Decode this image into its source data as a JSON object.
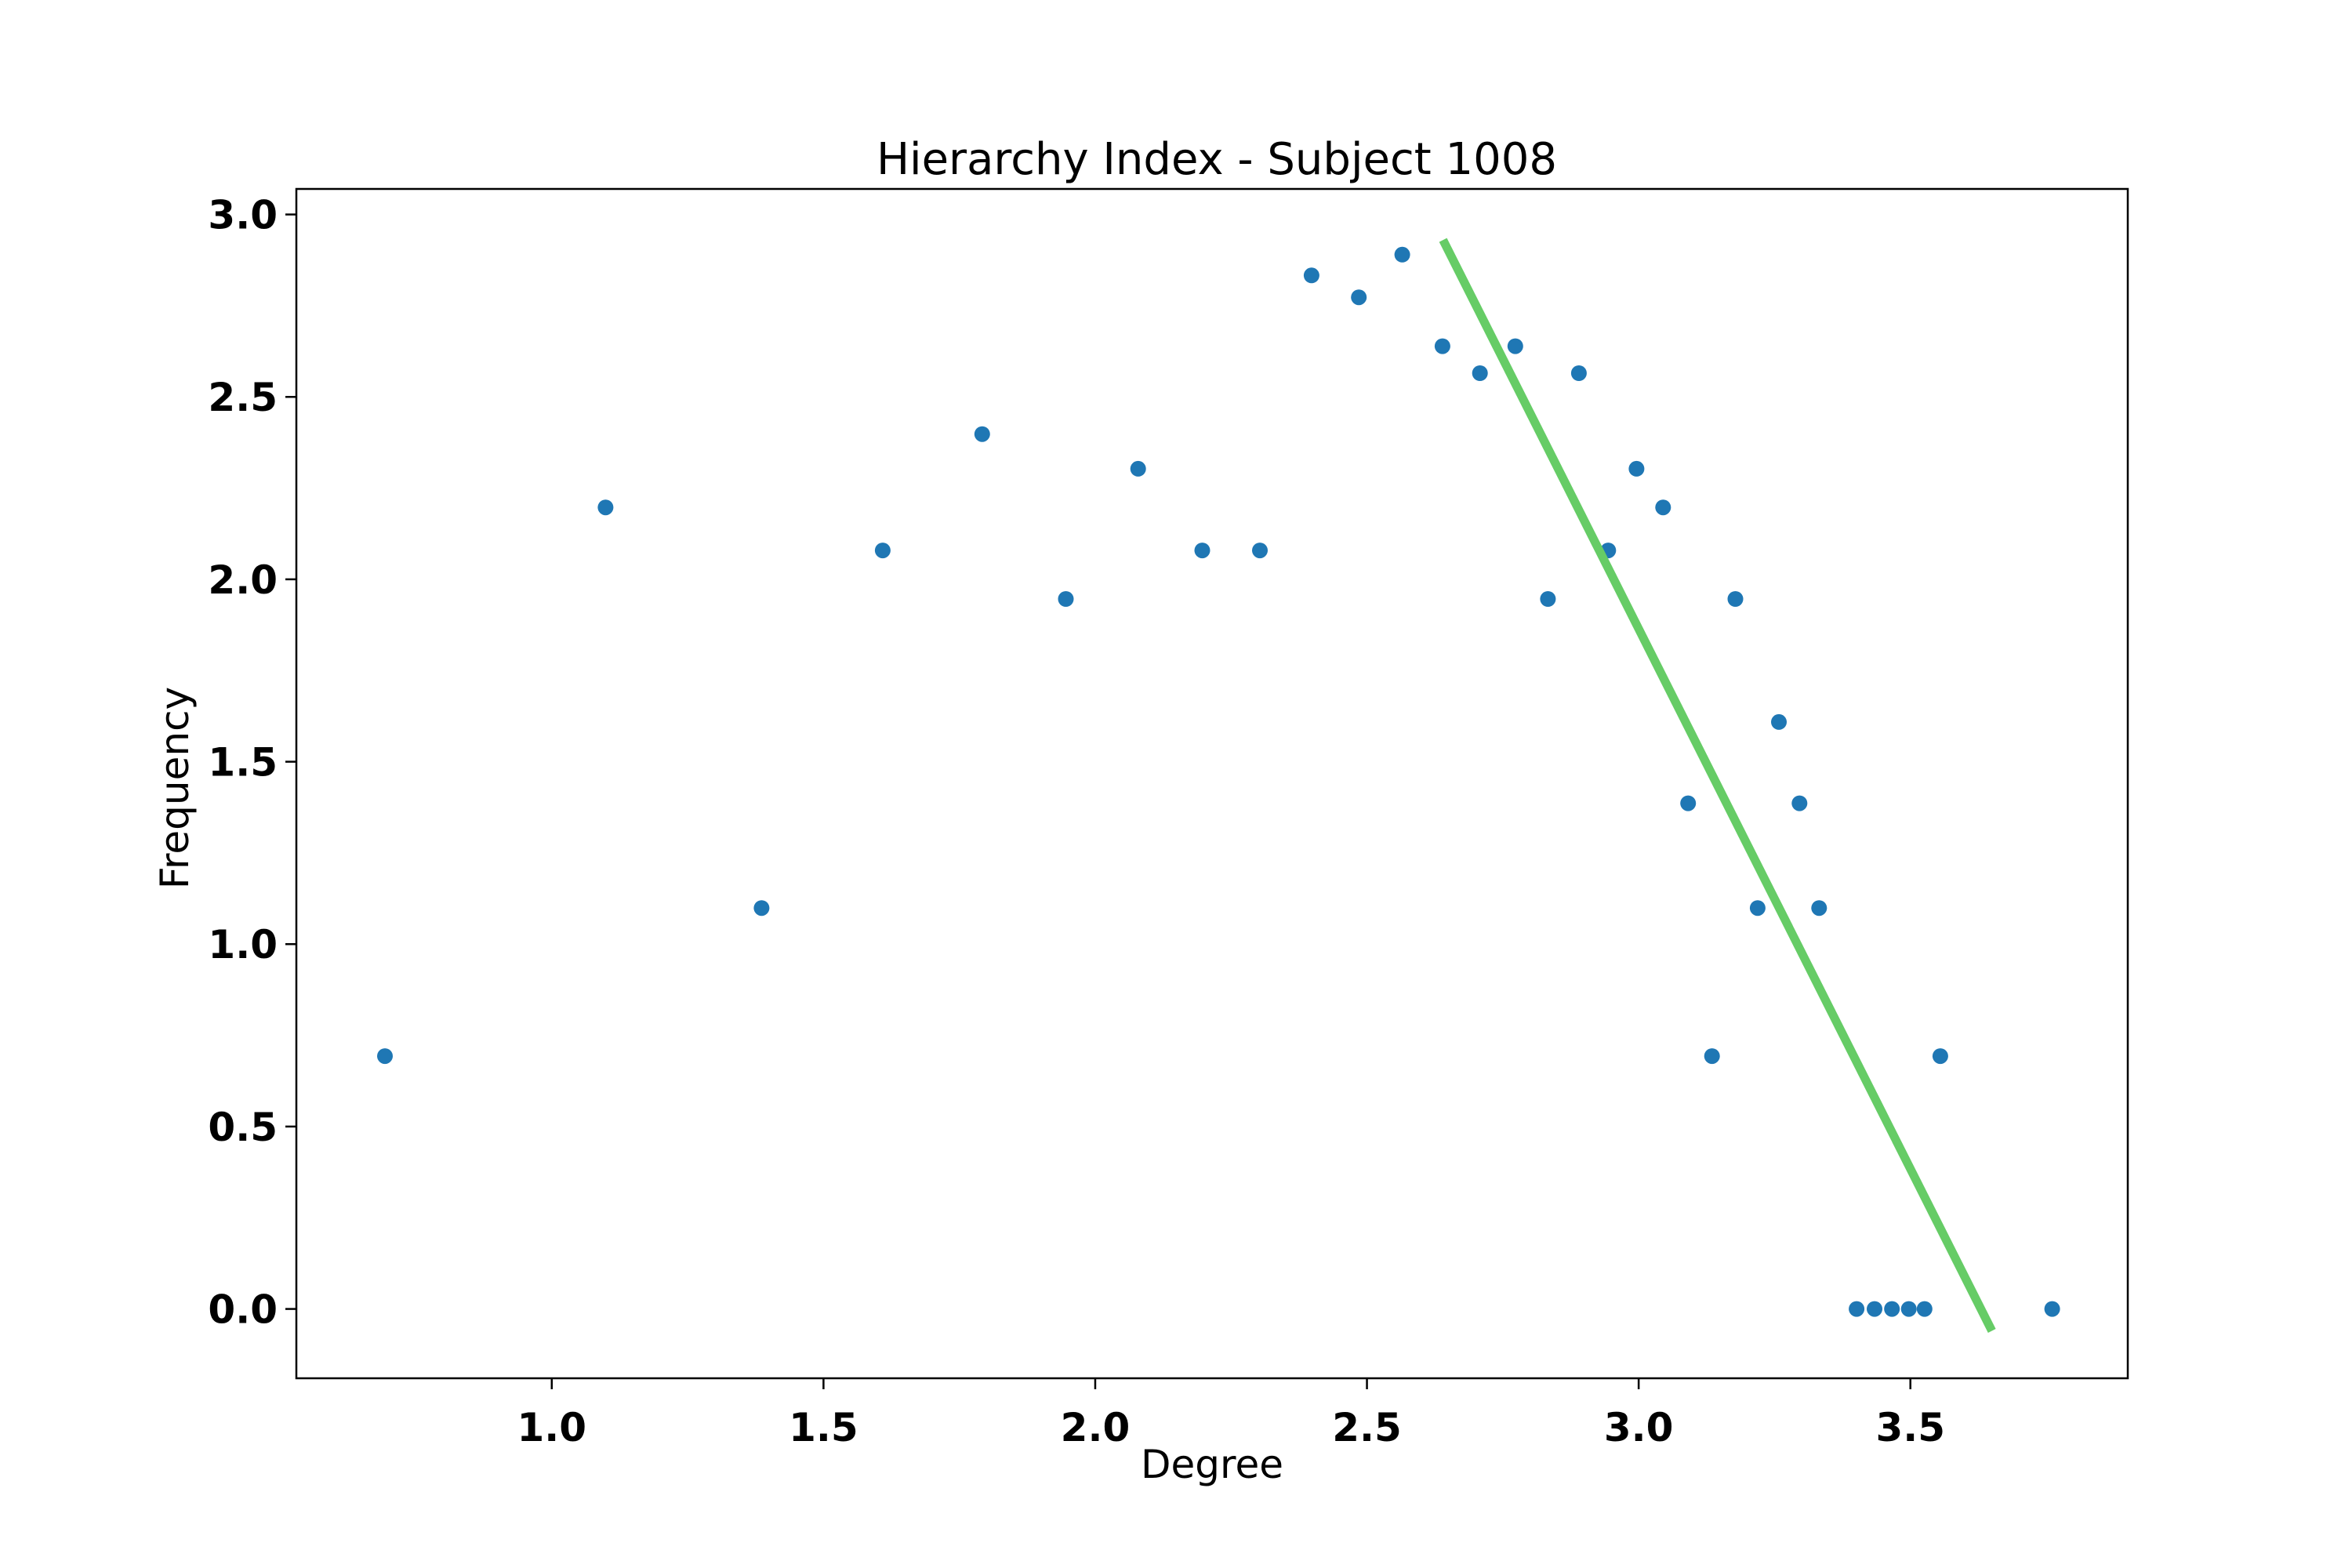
{
  "chart_data": {
    "type": "scatter",
    "title": "Hierarchy Index - Subject 1008",
    "xlabel": "Degree",
    "ylabel": "Frequency",
    "xlim": [
      0.53,
      3.9
    ],
    "ylim": [
      -0.19,
      3.07
    ],
    "xticks": [
      1.0,
      1.5,
      2.0,
      2.5,
      3.0,
      3.5
    ],
    "xtick_labels": [
      "1.0",
      "1.5",
      "2.0",
      "2.5",
      "3.0",
      "3.5"
    ],
    "yticks": [
      0.0,
      0.5,
      1.0,
      1.5,
      2.0,
      2.5,
      3.0
    ],
    "ytick_labels": [
      "0.0",
      "0.5",
      "1.0",
      "1.5",
      "2.0",
      "2.5",
      "3.0"
    ],
    "grid": false,
    "series": [
      {
        "type": "scatter",
        "color": "#1f77b4",
        "x": [
          0.693,
          1.099,
          1.386,
          1.609,
          1.792,
          1.946,
          2.079,
          2.197,
          2.303,
          2.398,
          2.485,
          2.565,
          2.639,
          2.708,
          2.773,
          2.833,
          2.89,
          2.944,
          2.996,
          3.045,
          3.091,
          3.135,
          3.178,
          3.219,
          3.258,
          3.296,
          3.332,
          3.401,
          3.434,
          3.466,
          3.497,
          3.526,
          3.555,
          3.761
        ],
        "y": [
          0.693,
          2.197,
          1.099,
          2.079,
          2.398,
          1.946,
          2.303,
          2.079,
          2.079,
          2.833,
          2.773,
          2.89,
          2.639,
          2.565,
          2.639,
          1.946,
          2.565,
          2.079,
          2.303,
          2.197,
          1.386,
          0.693,
          1.946,
          1.099,
          1.609,
          1.386,
          1.099,
          0.0,
          0.0,
          0.0,
          0.0,
          0.0,
          0.693,
          0.0
        ]
      },
      {
        "type": "line",
        "color": "#66cc66",
        "x": [
          2.64,
          3.65
        ],
        "y": [
          2.93,
          -0.06
        ]
      }
    ]
  }
}
